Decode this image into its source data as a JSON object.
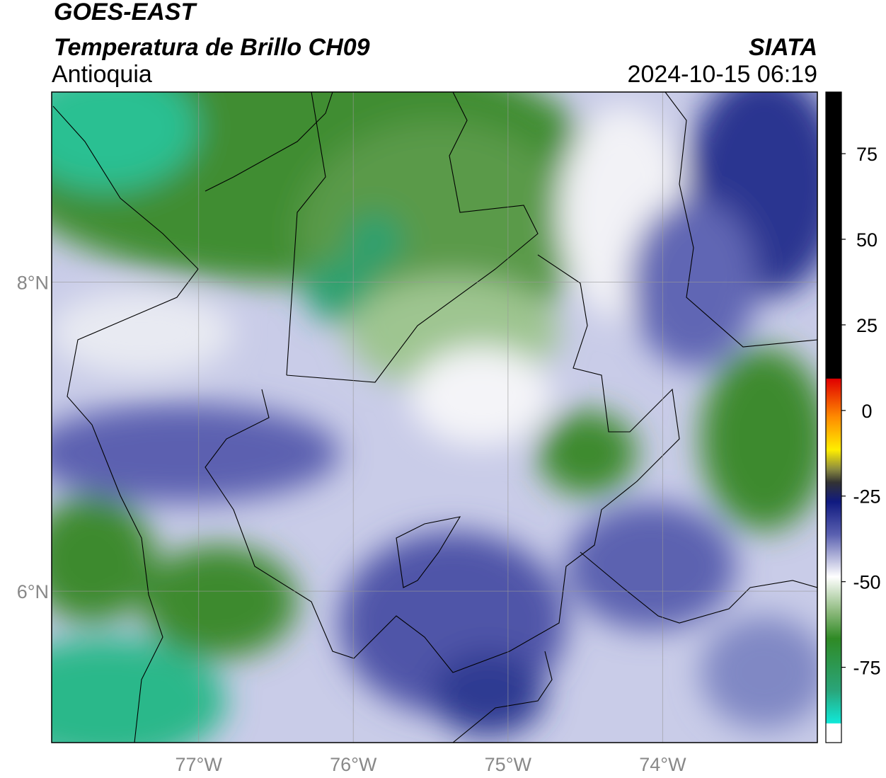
{
  "header": {
    "title": "GOES-EAST",
    "subtitle": "Temperatura de Brillo CH09",
    "region": "Antioquia",
    "source": "SIATA",
    "timestamp": "2024-10-15 06:19"
  },
  "map": {
    "xlim": [
      -77.95,
      -73.0
    ],
    "ylim": [
      5.02,
      9.23
    ],
    "xticks": [
      {
        "value": -77,
        "label": "77°W"
      },
      {
        "value": -76,
        "label": "76°W"
      },
      {
        "value": -75,
        "label": "75°W"
      },
      {
        "value": -74,
        "label": "74°W"
      }
    ],
    "yticks": [
      {
        "value": 8,
        "label": "8°N"
      },
      {
        "value": 6,
        "label": "6°N"
      }
    ],
    "grid": true
  },
  "colorbar": {
    "lim": [
      -97,
      93
    ],
    "ticks": [
      75,
      50,
      25,
      0,
      -25,
      -50,
      -75
    ]
  }
}
